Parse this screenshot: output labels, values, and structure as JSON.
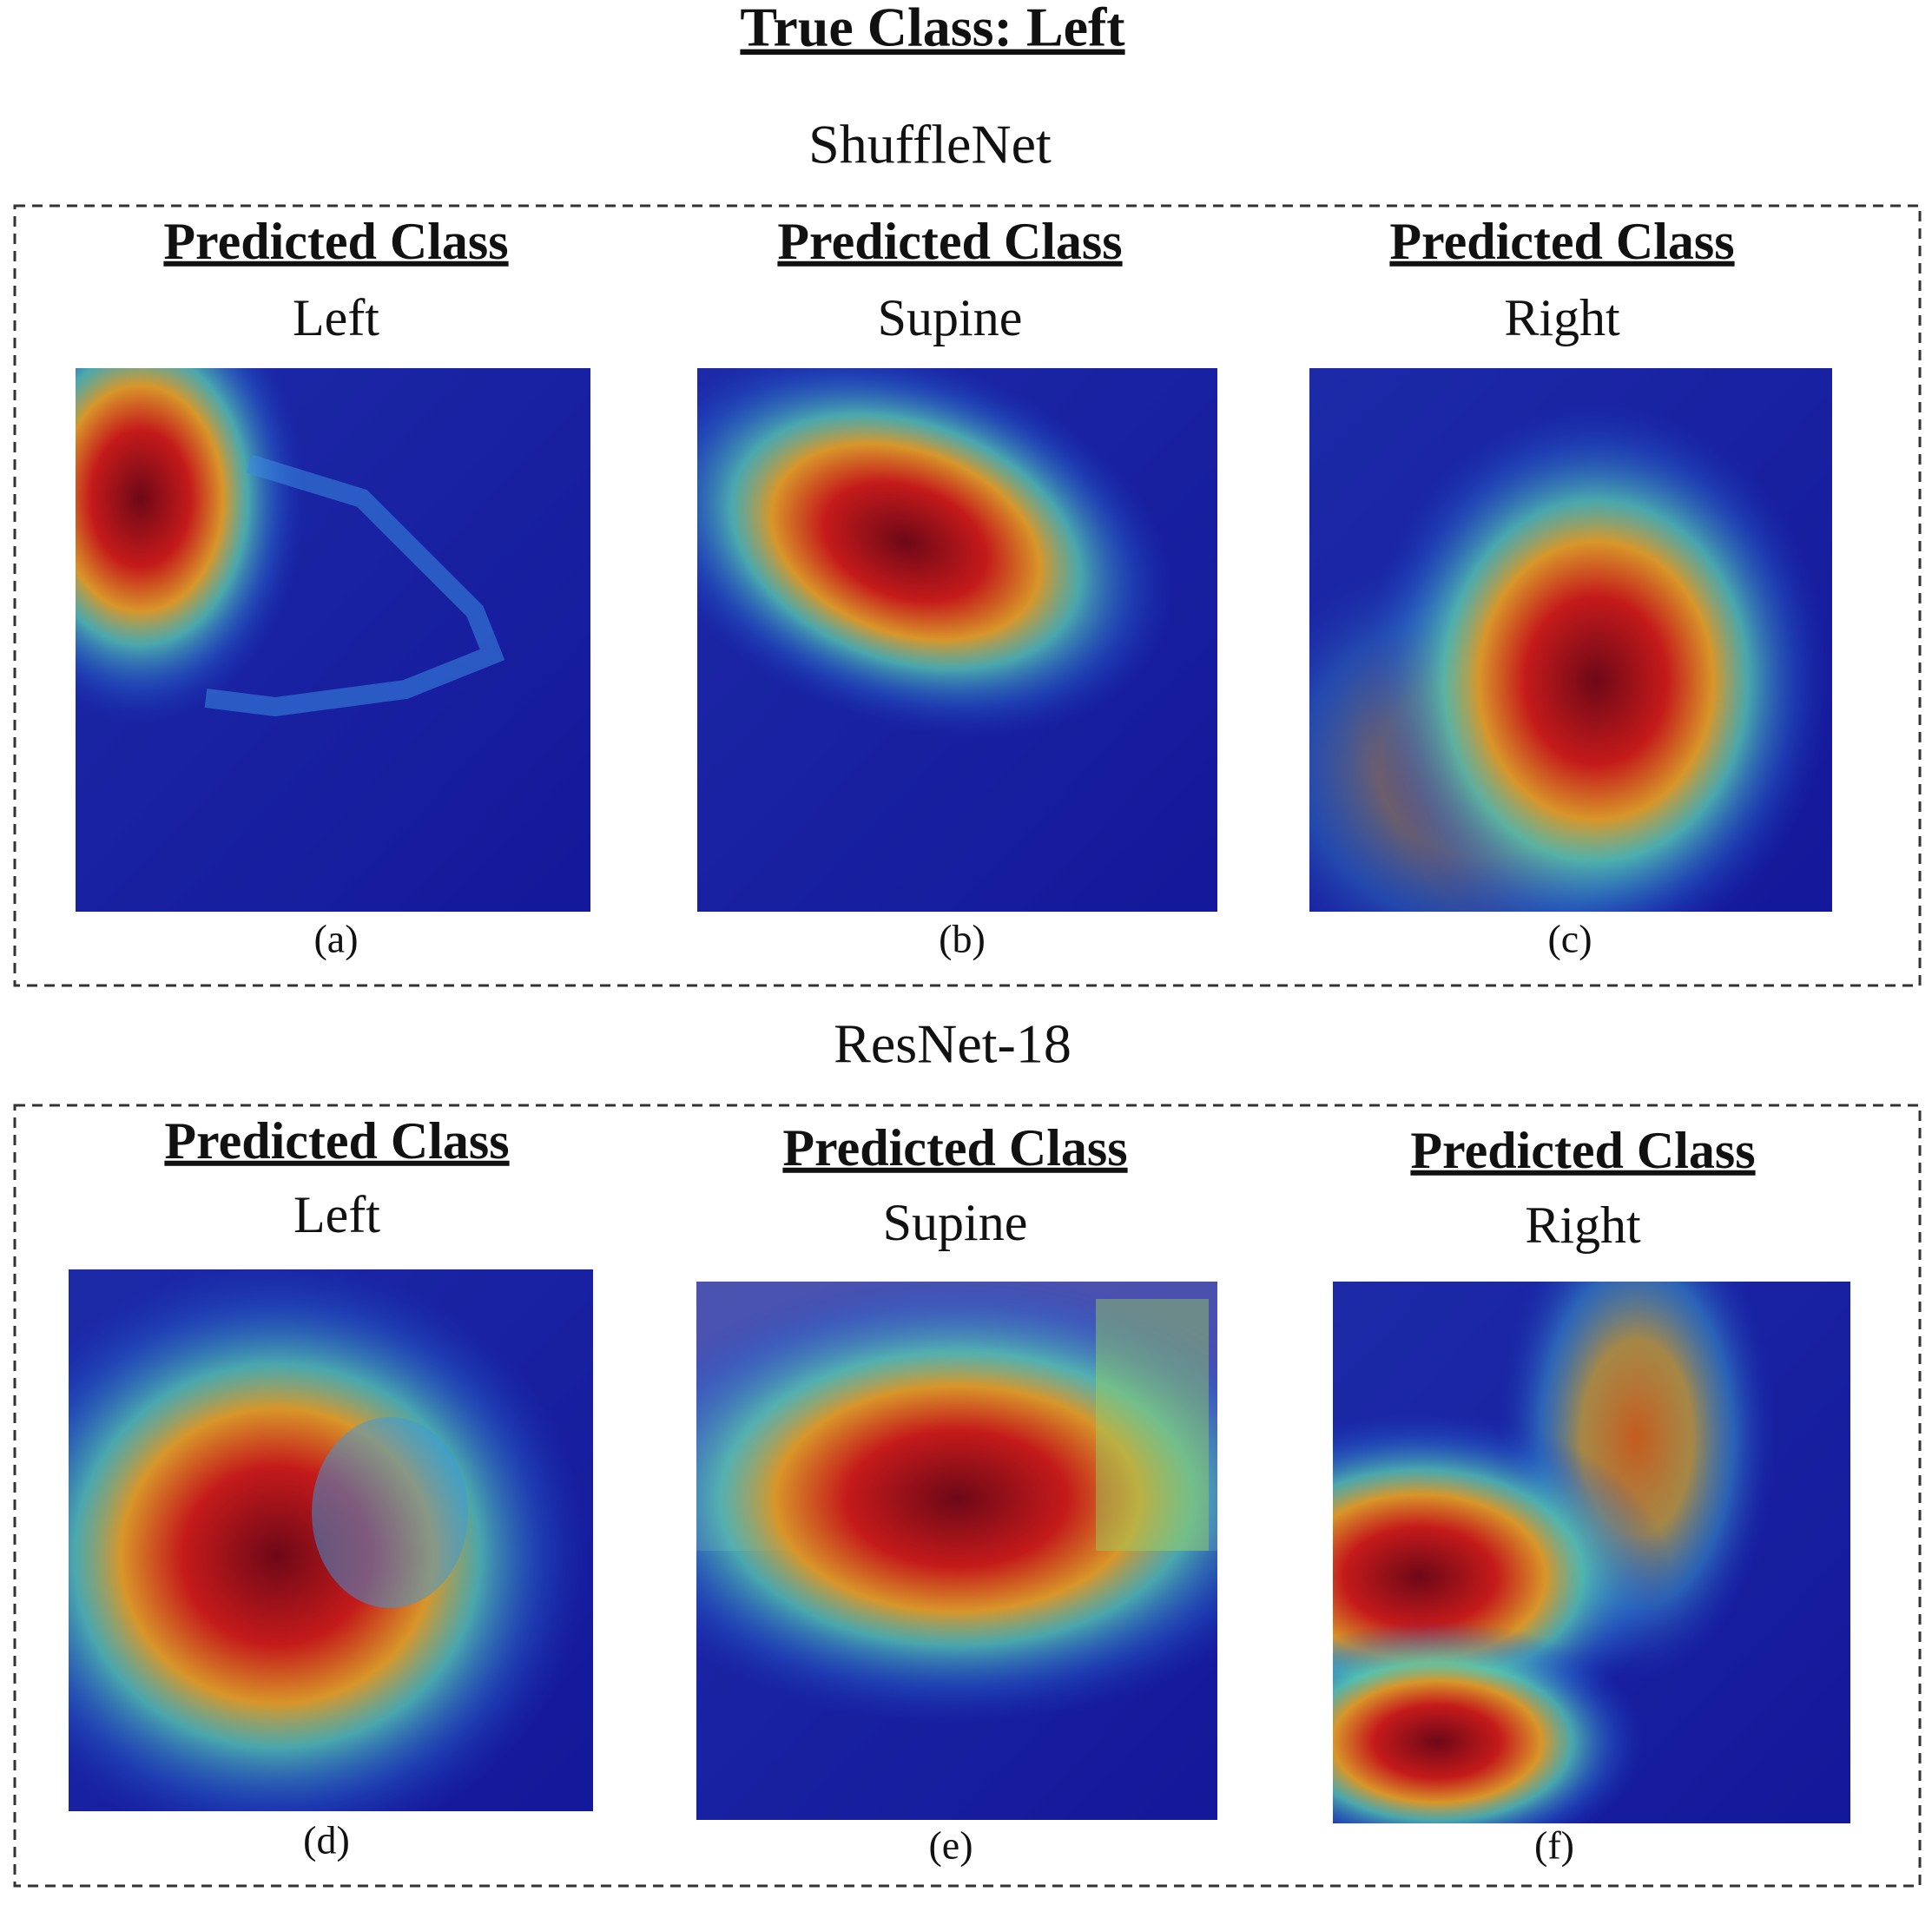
{
  "title": "True Class: Left",
  "groups": [
    {
      "name": "ShuffleNet",
      "panels": [
        {
          "heading": "Predicted Class",
          "label": "Left",
          "caption": "(a)"
        },
        {
          "heading": "Predicted Class",
          "label": "Supine",
          "caption": "(b)"
        },
        {
          "heading": "Predicted Class",
          "label": "Right",
          "caption": "(c)"
        }
      ]
    },
    {
      "name": "ResNet-18",
      "panels": [
        {
          "heading": "Predicted Class",
          "label": "Left",
          "caption": "(d)"
        },
        {
          "heading": "Predicted Class",
          "label": "Supine",
          "caption": "(e)"
        },
        {
          "heading": "Predicted Class",
          "label": "Right",
          "caption": "(f)"
        }
      ]
    }
  ]
}
